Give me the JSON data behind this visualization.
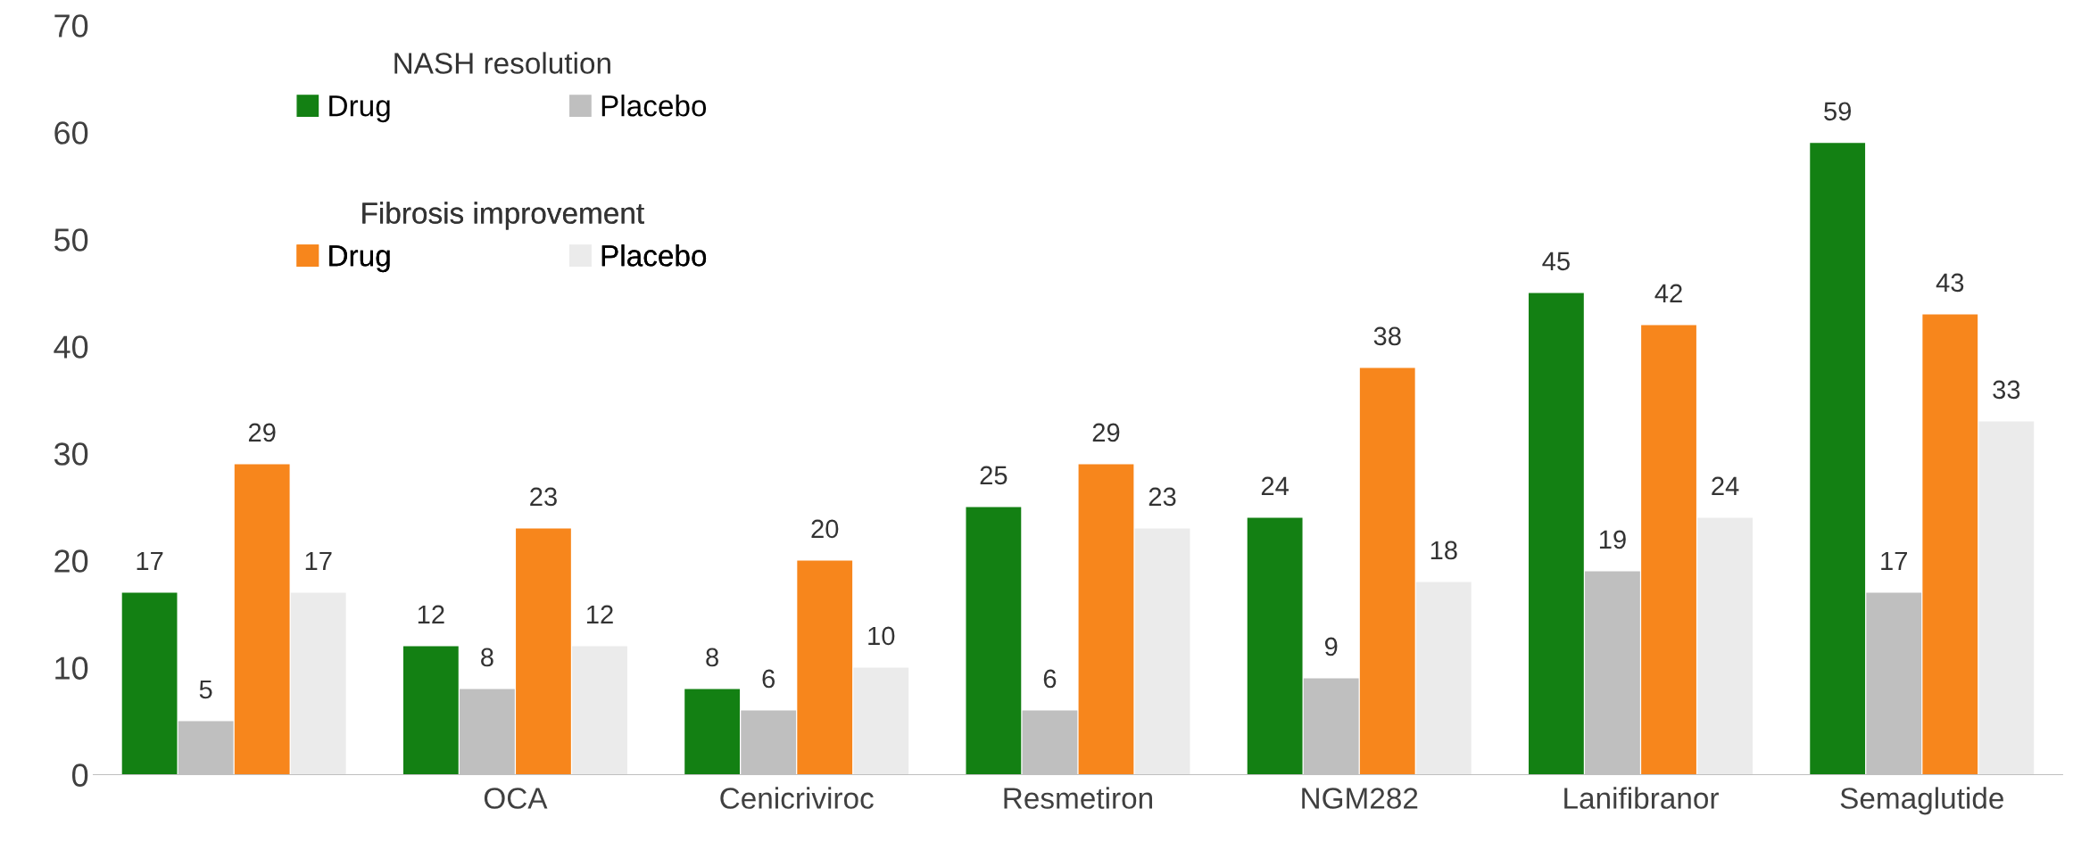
{
  "chart_data": {
    "type": "bar",
    "categories": [
      null,
      "OCA",
      "Cenicriviroc",
      "Resmetiron",
      "NGM282",
      "Lanifibranor",
      "Semaglutide"
    ],
    "series": [
      {
        "name": "Drug",
        "color": "#138013",
        "values": [
          17,
          12,
          8,
          25,
          24,
          45,
          59
        ]
      },
      {
        "name": "Placebo",
        "color": "#bfbfbf",
        "values": [
          5,
          8,
          6,
          6,
          9,
          19,
          17
        ]
      },
      {
        "name": "Drug",
        "color": "#f7861c",
        "values": [
          29,
          23,
          20,
          29,
          38,
          42,
          43
        ]
      },
      {
        "name": "Placebo",
        "color": "#ebebeb",
        "values": [
          17,
          12,
          10,
          23,
          18,
          24,
          33
        ]
      }
    ],
    "annotations": [
      "NASH resolution",
      "Fibrosis improvement"
    ],
    "ylim": [
      0,
      70
    ],
    "yticks": [
      0,
      10,
      20,
      30,
      40,
      50,
      60,
      70
    ],
    "data_labels": true,
    "grid": false,
    "legend": "top left"
  }
}
